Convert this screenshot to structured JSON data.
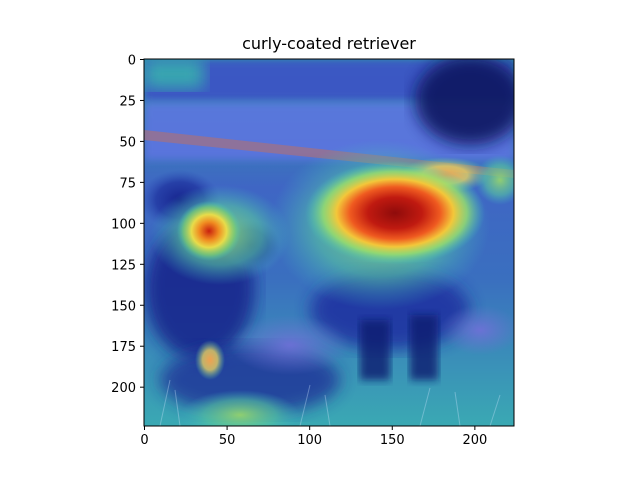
{
  "chart_data": {
    "type": "heatmap",
    "title": "curly-coated retriever",
    "xlabel": "",
    "ylabel": "",
    "xlim": [
      0,
      224
    ],
    "ylim": [
      224,
      0
    ],
    "x_ticks": [
      0,
      50,
      100,
      150,
      200
    ],
    "y_ticks": [
      0,
      25,
      50,
      75,
      100,
      125,
      150,
      175,
      200
    ],
    "x_tick_labels": [
      "0",
      "50",
      "100",
      "150",
      "200"
    ],
    "y_tick_labels": [
      "0",
      "25",
      "50",
      "75",
      "100",
      "125",
      "150",
      "175",
      "200"
    ],
    "colormap": "jet",
    "grid": false,
    "image_content": "photo of a dark curly-coated dog on a leash standing in grass, overlaid with a class activation heatmap",
    "hotspots": [
      {
        "x": 150,
        "y": 93,
        "intensity": 1.0
      },
      {
        "x": 40,
        "y": 105,
        "intensity": 0.85
      },
      {
        "x": 180,
        "y": 72,
        "intensity": 0.6
      },
      {
        "x": 55,
        "y": 218,
        "intensity": 0.45
      }
    ]
  }
}
